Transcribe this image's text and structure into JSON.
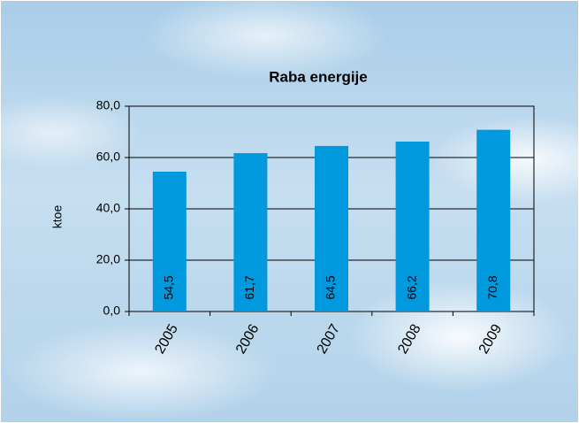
{
  "chart_data": {
    "type": "bar",
    "title": "Raba energije",
    "y_label": "ktoe",
    "categories": [
      "2005",
      "2006",
      "2007",
      "2008",
      "2009"
    ],
    "values": [
      54.5,
      61.7,
      64.5,
      66.2,
      70.8
    ],
    "value_labels": [
      "54,5",
      "61,7",
      "64,5",
      "66,2",
      "70,8"
    ],
    "color": "#0099dd",
    "ylim": [
      0,
      80
    ],
    "yticks": [
      {
        "value": 0,
        "label": "0,0"
      },
      {
        "value": 20,
        "label": "20,0"
      },
      {
        "value": 40,
        "label": "40,0"
      },
      {
        "value": 60,
        "label": "60,0"
      },
      {
        "value": 80,
        "label": "80,0"
      }
    ],
    "grid": true
  }
}
